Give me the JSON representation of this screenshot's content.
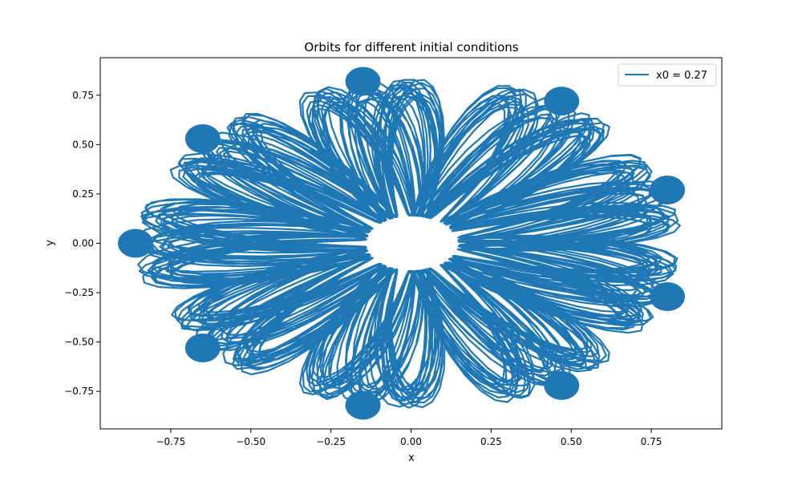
{
  "chart_data": {
    "type": "line",
    "title": "Orbits for different initial conditions",
    "xlabel": "x",
    "ylabel": "y",
    "xlim": [
      -0.97,
      0.97
    ],
    "ylim": [
      -0.94,
      0.94
    ],
    "xticks": [
      -0.75,
      -0.5,
      -0.25,
      0.0,
      0.25,
      0.5,
      0.75
    ],
    "xtick_labels": [
      "−0.75",
      "−0.50",
      "−0.25",
      "0.00",
      "0.25",
      "0.50",
      "0.75"
    ],
    "yticks": [
      -0.75,
      -0.5,
      -0.25,
      0.0,
      0.25,
      0.5,
      0.75
    ],
    "ytick_labels": [
      "−0.75",
      "−0.50",
      "−0.25",
      "0.00",
      "0.25",
      "0.50",
      "0.75"
    ],
    "grid": false,
    "legend_position": "top-right",
    "series": [
      {
        "name": "x0 = 0.27",
        "color": "#1f77b4",
        "x_range": [
          -0.88,
          0.87
        ],
        "y_range": [
          -0.88,
          0.88
        ],
        "lobe_tips": [
          [
            -0.86,
            0.0
          ],
          [
            -0.65,
            0.53
          ],
          [
            -0.65,
            -0.53
          ],
          [
            -0.15,
            0.82
          ],
          [
            -0.15,
            -0.82
          ],
          [
            0.47,
            0.72
          ],
          [
            0.47,
            -0.72
          ],
          [
            0.8,
            0.27
          ],
          [
            0.8,
            -0.27
          ]
        ]
      }
    ]
  }
}
